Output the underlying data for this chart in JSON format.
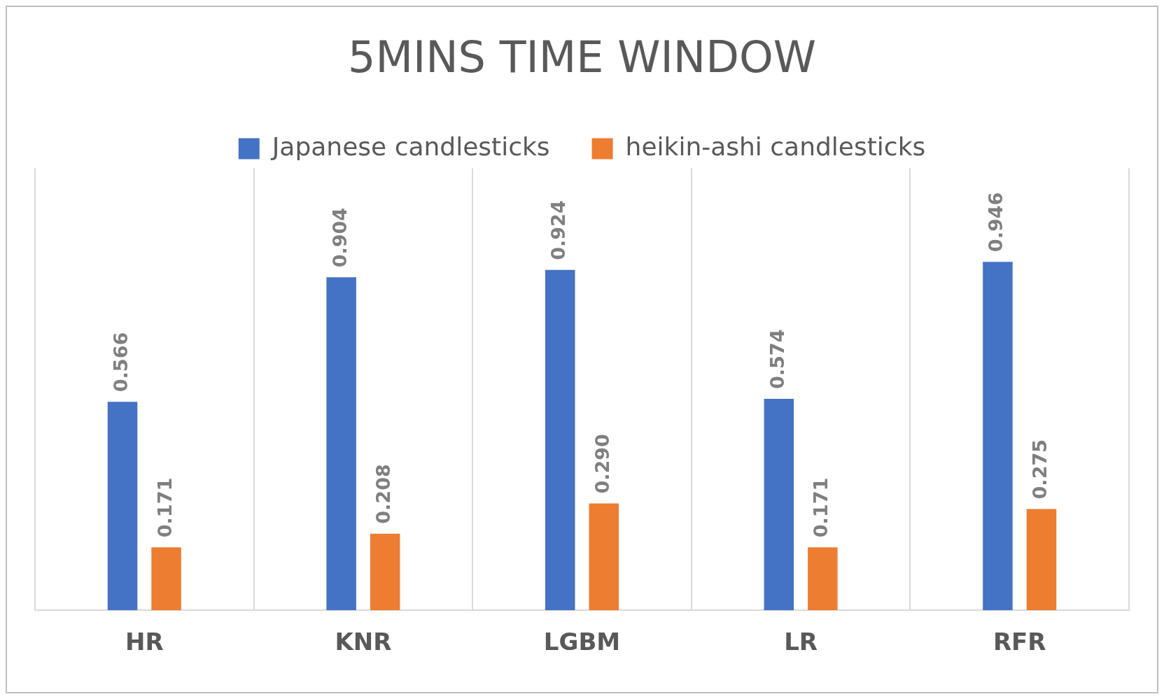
{
  "chart_data": {
    "type": "bar",
    "title": "5MINS TIME WINDOW",
    "categories": [
      "HR",
      "KNR",
      "LGBM",
      "LR",
      "RFR"
    ],
    "series": [
      {
        "name": "Japanese candlesticks",
        "color": "#4472c4",
        "values": [
          0.566,
          0.904,
          0.924,
          0.574,
          0.946
        ],
        "value_labels": [
          "0.566",
          "0.904",
          "0.924",
          "0.574",
          "0.946"
        ]
      },
      {
        "name": "heikin-ashi candlesticks",
        "color": "#ed7d31",
        "values": [
          0.171,
          0.208,
          0.29,
          0.171,
          0.275
        ],
        "value_labels": [
          "0.171",
          "0.208",
          "0.290",
          "0.171",
          "0.275"
        ]
      }
    ],
    "legend": "top",
    "grid": "x",
    "tick_labels": "x"
  }
}
